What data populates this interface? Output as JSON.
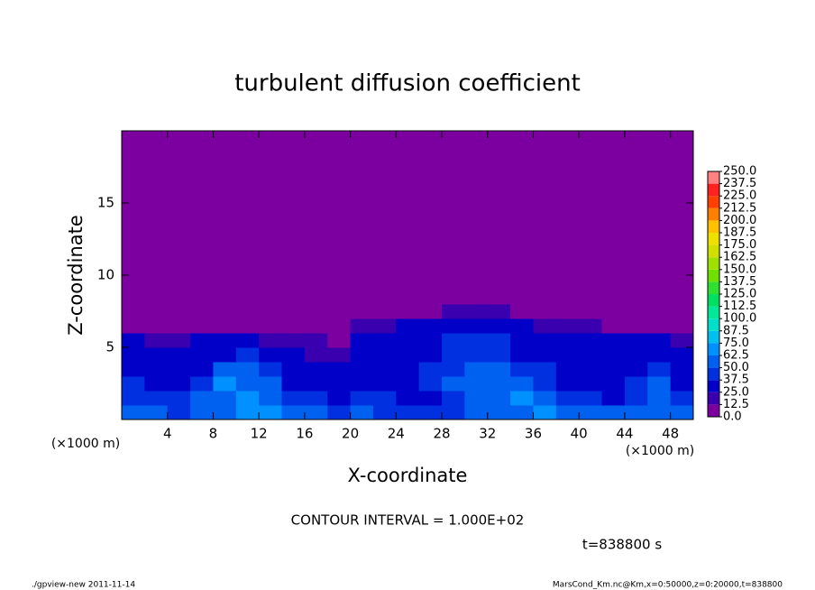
{
  "chart_data": {
    "type": "contour",
    "title": "turbulent diffusion coefficient",
    "xlabel": "X-coordinate",
    "ylabel": "Z-coordinate",
    "x_unit_label": "(×1000 m)",
    "y_unit_label": "(×1000 m)",
    "contour_note": "CONTOUR INTERVAL = 1.000E+02",
    "time_label": "t=838800 s",
    "footer_left": "./gpview-new  2011-11-14",
    "footer_right": "MarsCond_Km.nc@Km,x=0:50000,z=0:20000,t=838800",
    "xlim": [
      0,
      50
    ],
    "ylim": [
      0,
      20
    ],
    "xticks": [
      4,
      8,
      12,
      16,
      20,
      24,
      28,
      32,
      36,
      40,
      44,
      48
    ],
    "yticks": [
      5,
      10,
      15
    ],
    "x_edges": [
      0,
      2,
      4,
      6,
      8,
      10,
      12,
      14,
      16,
      18,
      20,
      22,
      24,
      26,
      28,
      30,
      32,
      34,
      36,
      38,
      40,
      42,
      44,
      46,
      48,
      50
    ],
    "z_edges": [
      0,
      1,
      2,
      3,
      4,
      5,
      6,
      7,
      8,
      9,
      10,
      20
    ],
    "values": [
      [
        60,
        50,
        45,
        55,
        60,
        70,
        65,
        50,
        55,
        45,
        50,
        45,
        40,
        40,
        45,
        50,
        55,
        60,
        70,
        60,
        55,
        50,
        55,
        60,
        50
      ],
      [
        45,
        40,
        40,
        50,
        60,
        70,
        60,
        45,
        40,
        35,
        40,
        40,
        35,
        35,
        45,
        55,
        60,
        65,
        55,
        45,
        40,
        35,
        45,
        55,
        40
      ],
      [
        40,
        35,
        30,
        40,
        65,
        60,
        55,
        35,
        30,
        30,
        35,
        35,
        30,
        40,
        50,
        55,
        60,
        55,
        45,
        35,
        30,
        30,
        40,
        50,
        35
      ],
      [
        35,
        30,
        25,
        35,
        50,
        55,
        45,
        30,
        25,
        25,
        30,
        35,
        30,
        40,
        45,
        50,
        55,
        45,
        40,
        35,
        30,
        30,
        35,
        40,
        30
      ],
      [
        30,
        25,
        25,
        30,
        35,
        40,
        35,
        25,
        20,
        20,
        30,
        30,
        30,
        35,
        40,
        45,
        45,
        35,
        35,
        30,
        30,
        35,
        30,
        30,
        25
      ],
      [
        25,
        20,
        20,
        25,
        25,
        25,
        20,
        15,
        15,
        10,
        25,
        30,
        30,
        35,
        40,
        40,
        40,
        35,
        30,
        25,
        25,
        30,
        25,
        25,
        20
      ],
      [
        10,
        5,
        5,
        5,
        5,
        5,
        5,
        5,
        5,
        5,
        20,
        20,
        25,
        30,
        35,
        35,
        30,
        25,
        20,
        20,
        15,
        10,
        10,
        10,
        5
      ],
      [
        0,
        0,
        0,
        0,
        0,
        0,
        0,
        0,
        0,
        0,
        0,
        0,
        0,
        10,
        20,
        20,
        15,
        0,
        0,
        0,
        0,
        0,
        0,
        0,
        0
      ],
      [
        0,
        0,
        0,
        0,
        0,
        0,
        0,
        0,
        0,
        0,
        0,
        0,
        0,
        0,
        0,
        10,
        5,
        0,
        0,
        0,
        0,
        0,
        0,
        0,
        0
      ],
      [
        0,
        0,
        0,
        0,
        0,
        0,
        0,
        0,
        0,
        0,
        0,
        0,
        0,
        0,
        0,
        0,
        0,
        0,
        0,
        0,
        0,
        0,
        0,
        0,
        0
      ],
      [
        0,
        0,
        0,
        0,
        0,
        0,
        0,
        0,
        0,
        0,
        0,
        0,
        0,
        0,
        0,
        0,
        0,
        0,
        0,
        0,
        0,
        0,
        0,
        0,
        0
      ]
    ],
    "levels": [
      {
        "value": 0,
        "label": "0.0"
      },
      {
        "value": 12.5,
        "label": "12.5"
      },
      {
        "value": 25,
        "label": "25.0"
      },
      {
        "value": 37.5,
        "label": "37.5"
      },
      {
        "value": 50,
        "label": "50.0"
      },
      {
        "value": 62.5,
        "label": "62.5"
      },
      {
        "value": 75,
        "label": "75.0"
      },
      {
        "value": 87.5,
        "label": "87.5"
      },
      {
        "value": 100,
        "label": "100.0"
      },
      {
        "value": 112.5,
        "label": "112.5"
      },
      {
        "value": 125,
        "label": "125.0"
      },
      {
        "value": 137.5,
        "label": "137.5"
      },
      {
        "value": 150,
        "label": "150.0"
      },
      {
        "value": 162.5,
        "label": "162.5"
      },
      {
        "value": 175,
        "label": "175.0"
      },
      {
        "value": 187.5,
        "label": "187.5"
      },
      {
        "value": 200,
        "label": "200.0"
      },
      {
        "value": 212.5,
        "label": "212.5"
      },
      {
        "value": 225,
        "label": "225.0"
      },
      {
        "value": 237.5,
        "label": "237.5"
      },
      {
        "value": 250,
        "label": "250.0"
      }
    ],
    "colors": [
      "#7b009f",
      "#3a00b0",
      "#0000c8",
      "#0030e0",
      "#0060f0",
      "#0090ff",
      "#00c0f0",
      "#00e0c8",
      "#00e898",
      "#00e060",
      "#30e030",
      "#70e000",
      "#a0e000",
      "#d0e000",
      "#f0e000",
      "#ffc000",
      "#ff8000",
      "#ff4000",
      "#ff2020",
      "#ff8080"
    ]
  }
}
